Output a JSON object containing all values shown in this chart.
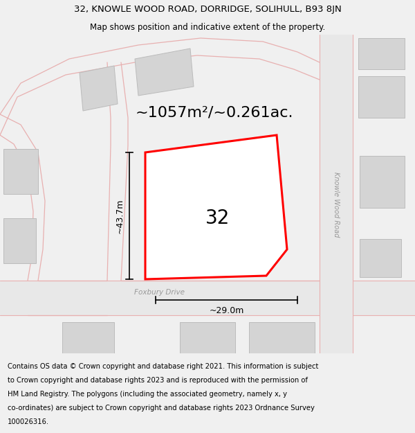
{
  "title_line1": "32, KNOWLE WOOD ROAD, DORRIDGE, SOLIHULL, B93 8JN",
  "title_line2": "Map shows position and indicative extent of the property.",
  "area_text": "~1057m²/~0.261ac.",
  "label_32": "32",
  "dim_vertical": "~43.7m",
  "dim_horizontal": "~29.0m",
  "road_name_foxbury": "Foxbury Drive",
  "road_name_knowle": "Knowle Wood Road",
  "footer_text": "Contains OS data © Crown copyright and database right 2021. This information is subject to Crown copyright and database rights 2023 and is reproduced with the permission of HM Land Registry. The polygons (including the associated geometry, namely x, y co-ordinates) are subject to Crown copyright and database rights 2023 Ordnance Survey 100026316.",
  "bg_color": "#f0f0f0",
  "map_bg": "#f0f0f0",
  "road_color": "#e8b0b0",
  "building_color": "#d4d4d4",
  "building_edge": "#bbbbbb",
  "plot_edge": "#ff0000",
  "title_fontsize": 9.5,
  "subtitle_fontsize": 8.5,
  "footer_fontsize": 7.2,
  "area_fontsize": 16,
  "label_fontsize": 20,
  "dim_fontsize": 9
}
